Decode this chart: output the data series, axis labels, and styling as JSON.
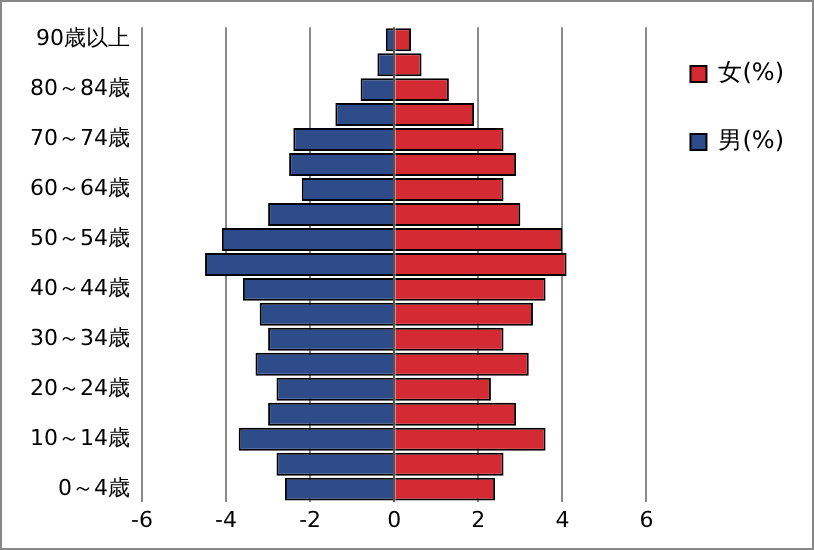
{
  "chart_data": {
    "type": "bar",
    "orientation": "horizontal",
    "stacked": true,
    "categories": [
      "90歳以上",
      null,
      "80～84歳",
      null,
      "70～74歳",
      null,
      "60～64歳",
      null,
      "50～54歳",
      null,
      "40～44歳",
      null,
      "30～34歳",
      null,
      "20～24歳",
      null,
      "10～14歳",
      null,
      "0～4歳"
    ],
    "series": [
      {
        "name": "女(%)",
        "color": "#d42a34",
        "values": [
          0.4,
          0.65,
          1.3,
          1.9,
          2.6,
          2.9,
          2.6,
          3.0,
          4.0,
          4.1,
          3.6,
          3.3,
          2.6,
          3.2,
          2.3,
          2.9,
          3.6,
          2.6,
          2.4
        ]
      },
      {
        "name": "男(%)",
        "color": "#2f4c8a",
        "values": [
          -0.2,
          -0.4,
          -0.8,
          -1.4,
          -2.4,
          -2.5,
          -2.2,
          -3.0,
          -4.1,
          -4.5,
          -3.6,
          -3.2,
          -3.0,
          -3.3,
          -2.8,
          -3.0,
          -3.7,
          -2.8,
          -2.6
        ]
      }
    ],
    "xlim": [
      -6,
      6
    ],
    "xticks": [
      -6,
      -4,
      -2,
      0,
      2,
      4,
      6
    ],
    "grid": "x",
    "legend": "right"
  }
}
